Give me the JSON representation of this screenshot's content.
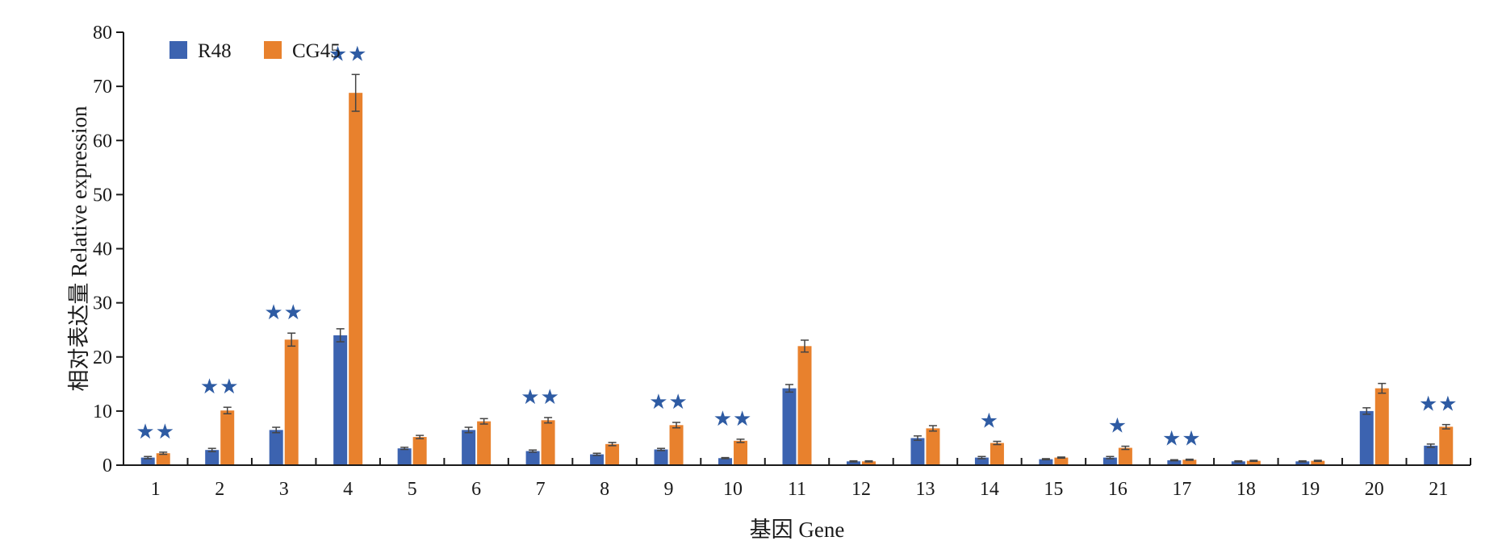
{
  "chart_data": {
    "type": "bar",
    "xlabel": "基因 Gene",
    "ylabel": "相对表达量 Relative expression",
    "ylim": [
      0,
      80
    ],
    "yticks": [
      0,
      10,
      20,
      30,
      40,
      50,
      60,
      70,
      80
    ],
    "categories": [
      "1",
      "2",
      "3",
      "4",
      "5",
      "6",
      "7",
      "8",
      "9",
      "10",
      "11",
      "12",
      "13",
      "14",
      "15",
      "16",
      "17",
      "18",
      "19",
      "20",
      "21"
    ],
    "series": [
      {
        "name": "R48",
        "color": "#3c63b0",
        "values": [
          1.4,
          2.8,
          6.5,
          24.0,
          3.1,
          6.5,
          2.6,
          2.0,
          2.9,
          1.3,
          14.2,
          0.7,
          5.0,
          1.4,
          1.1,
          1.4,
          0.9,
          0.7,
          0.7,
          10.0,
          3.6
        ],
        "errors": [
          0.2,
          0.3,
          0.5,
          1.2,
          0.2,
          0.5,
          0.2,
          0.2,
          0.2,
          0.1,
          0.7,
          0.1,
          0.4,
          0.2,
          0.1,
          0.2,
          0.1,
          0.1,
          0.1,
          0.6,
          0.3
        ]
      },
      {
        "name": "CG45",
        "color": "#e8812d",
        "values": [
          2.2,
          10.1,
          23.2,
          68.8,
          5.2,
          8.1,
          8.3,
          3.9,
          7.4,
          4.5,
          22.0,
          0.7,
          6.8,
          4.1,
          1.4,
          3.2,
          1.0,
          0.8,
          0.8,
          14.2,
          7.1
        ],
        "errors": [
          0.2,
          0.6,
          1.2,
          3.4,
          0.3,
          0.5,
          0.5,
          0.3,
          0.5,
          0.3,
          1.1,
          0.1,
          0.5,
          0.3,
          0.1,
          0.3,
          0.1,
          0.1,
          0.1,
          0.9,
          0.4
        ]
      }
    ],
    "significance": {
      "symbol": "★",
      "color": "#2e5ba3",
      "stars": [
        2,
        2,
        2,
        2,
        0,
        0,
        2,
        0,
        2,
        2,
        0,
        0,
        0,
        1,
        0,
        1,
        2,
        0,
        0,
        0,
        2
      ]
    },
    "legend_position": "top-left",
    "grid": false
  }
}
